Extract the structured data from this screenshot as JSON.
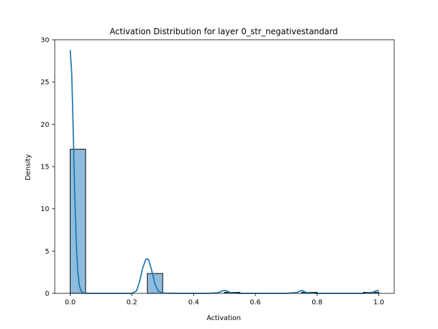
{
  "chart_data": {
    "type": "bar",
    "title": "Activation Distribution for layer 0_str_negativestandard",
    "xlabel": "Activation",
    "ylabel": "Density",
    "xlim": [
      -0.05,
      1.05
    ],
    "ylim": [
      0,
      30
    ],
    "xticks": [
      0.0,
      0.2,
      0.4,
      0.6,
      0.8,
      1.0
    ],
    "xtick_labels": [
      "0.0",
      "0.2",
      "0.4",
      "0.6",
      "0.8",
      "1.0"
    ],
    "yticks": [
      0,
      5,
      10,
      15,
      20,
      25,
      30
    ],
    "ytick_labels": [
      "0",
      "5",
      "10",
      "15",
      "20",
      "25",
      "30"
    ],
    "grid": false,
    "bin_width": 0.05,
    "bins": [
      {
        "x0": 0.0,
        "density": 17.05
      },
      {
        "x0": 0.25,
        "density": 2.35
      },
      {
        "x0": 0.5,
        "density": 0.12
      },
      {
        "x0": 0.75,
        "density": 0.12
      },
      {
        "x0": 0.95,
        "density": 0.12
      }
    ],
    "kde": {
      "x": [
        0.0,
        0.005,
        0.01,
        0.015,
        0.02,
        0.025,
        0.03,
        0.035,
        0.04,
        0.05,
        0.06,
        0.08,
        0.1,
        0.2,
        0.215,
        0.225,
        0.235,
        0.245,
        0.25,
        0.255,
        0.265,
        0.275,
        0.285,
        0.3,
        0.35,
        0.45,
        0.48,
        0.49,
        0.5,
        0.51,
        0.52,
        0.55,
        0.7,
        0.735,
        0.745,
        0.75,
        0.755,
        0.765,
        0.8,
        0.95,
        0.98,
        0.99,
        1.0
      ],
      "y": [
        28.8,
        26.0,
        19.0,
        11.5,
        5.8,
        2.4,
        0.9,
        0.3,
        0.08,
        0.01,
        0.0,
        0.0,
        0.0,
        0.0,
        0.3,
        1.4,
        3.0,
        4.0,
        4.1,
        3.9,
        2.6,
        1.1,
        0.3,
        0.03,
        0.0,
        0.0,
        0.08,
        0.25,
        0.35,
        0.25,
        0.08,
        0.0,
        0.0,
        0.1,
        0.28,
        0.35,
        0.28,
        0.1,
        0.0,
        0.0,
        0.12,
        0.28,
        0.35
      ]
    },
    "colors": {
      "bar_fill": "#8fbcdc",
      "bar_edge": "#000000",
      "kde_line": "#1f77b4"
    }
  }
}
